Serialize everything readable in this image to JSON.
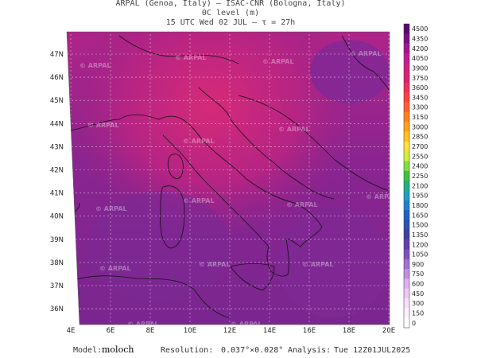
{
  "header": {
    "line1": "ARPAL (Genoa, Italy)  —  ISAC-CNR (Bologna, Italy)",
    "line2": "0C level (m)",
    "line3": "15 UTC Wed 02 JUL  –  τ = 27h"
  },
  "map": {
    "lat_labels": [
      "47N",
      "46N",
      "45N",
      "44N",
      "43N",
      "42N",
      "41N",
      "40N",
      "39N",
      "38N",
      "37N",
      "36N"
    ],
    "lon_labels": [
      "4E",
      "6E",
      "8E",
      "10E",
      "12E",
      "14E",
      "16E",
      "18E",
      "20E"
    ],
    "watermark": "© ARPAL"
  },
  "colorbar": {
    "labels": [
      "4500",
      "4350",
      "4200",
      "4050",
      "3900",
      "3750",
      "3600",
      "3450",
      "3300",
      "3150",
      "3000",
      "2850",
      "2700",
      "2550",
      "2400",
      "2250",
      "2100",
      "1950",
      "1800",
      "1650",
      "1500",
      "1350",
      "1200",
      "1050",
      "900",
      "750",
      "600",
      "450",
      "300",
      "150",
      "0"
    ],
    "colors": [
      "#5a0a6e",
      "#7a1080",
      "#a01890",
      "#c01c90",
      "#d02080",
      "#e02070",
      "#f03060",
      "#ff4040",
      "#ff6030",
      "#ff8020",
      "#ffa020",
      "#ffc020",
      "#ffe040",
      "#d0f040",
      "#80e040",
      "#40c040",
      "#20b080",
      "#20a0c0",
      "#2080d0",
      "#2060c0",
      "#3050b0",
      "#4040a0",
      "#6040b0",
      "#8050c0",
      "#a070d0",
      "#c090e0",
      "#e0b0f0",
      "#f0c8f8",
      "#f8e0fc",
      "#fff0ff",
      "#ffffff"
    ]
  },
  "footer": {
    "model_label": "Model:",
    "model": "moloch",
    "resolution_label": "Resolution:",
    "resolution": "0.037°×0.028°",
    "analysis_label": "Analysis:",
    "analysis": "Tue 12Z01JUL2025"
  }
}
